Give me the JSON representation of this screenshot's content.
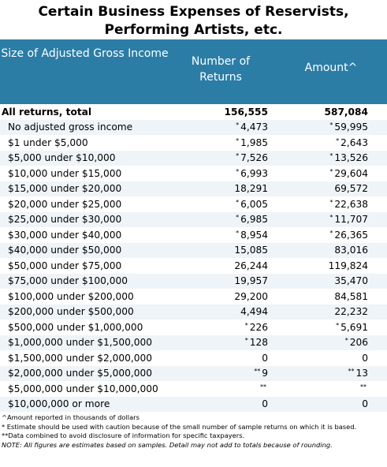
{
  "title": "Certain Business Expenses of Reservists, Performing Artists, etc.",
  "headers": {
    "col1": "Size of Adjusted Gross Income",
    "col2": "Number of Returns",
    "col3": "Amount^"
  },
  "rows": [
    {
      "label": "All returns, total",
      "returns": "156,555",
      "amount": "587,084"
    },
    {
      "label": "No adjusted gross income",
      "returns": "4,473",
      "returns_mark": "*",
      "amount": "59,995",
      "amount_mark": "*"
    },
    {
      "label": "$1 under $5,000",
      "returns": "1,985",
      "returns_mark": "*",
      "amount": "2,643",
      "amount_mark": "*"
    },
    {
      "label": "$5,000 under $10,000",
      "returns": "7,526",
      "returns_mark": "*",
      "amount": "13,526",
      "amount_mark": "*"
    },
    {
      "label": "$10,000 under $15,000",
      "returns": "6,993",
      "returns_mark": "*",
      "amount": "29,604",
      "amount_mark": "*"
    },
    {
      "label": "$15,000 under $20,000",
      "returns": "18,291",
      "amount": "69,572"
    },
    {
      "label": "$20,000 under $25,000",
      "returns": "6,005",
      "returns_mark": "*",
      "amount": "22,638",
      "amount_mark": "*"
    },
    {
      "label": "$25,000 under $30,000",
      "returns": "6,985",
      "returns_mark": "*",
      "amount": "11,707",
      "amount_mark": "*"
    },
    {
      "label": "$30,000 under $40,000",
      "returns": "8,954",
      "returns_mark": "*",
      "amount": "26,365",
      "amount_mark": "*"
    },
    {
      "label": "$40,000 under $50,000",
      "returns": "15,085",
      "amount": "83,016"
    },
    {
      "label": "$50,000 under $75,000",
      "returns": "26,244",
      "amount": "119,824"
    },
    {
      "label": "$75,000 under $100,000",
      "returns": "19,957",
      "amount": "35,470"
    },
    {
      "label": "$100,000 under $200,000",
      "returns": "29,200",
      "amount": "84,581"
    },
    {
      "label": "$200,000 under $500,000",
      "returns": "4,494",
      "amount": "22,232"
    },
    {
      "label": "$500,000 under $1,000,000",
      "returns": "226",
      "returns_mark": "*",
      "amount": "5,691",
      "amount_mark": "*"
    },
    {
      "label": "$1,000,000 under $1,500,000",
      "returns": "128",
      "returns_mark": "*",
      "amount": "206",
      "amount_mark": "*"
    },
    {
      "label": "$1,500,000 under $2,000,000",
      "returns": "0",
      "amount": "0"
    },
    {
      "label": "$2,000,000 under $5,000,000",
      "returns": "9",
      "returns_mark": "**",
      "amount": "13",
      "amount_mark": "**"
    },
    {
      "label": "$5,000,000 under $10,000,000",
      "returns": "",
      "returns_mark": "**",
      "amount": "",
      "amount_mark": "**"
    },
    {
      "label": "$10,000,000 or more",
      "returns": "0",
      "amount": "0"
    }
  ],
  "notes": [
    "^Amount reported in thousands of dollars",
    "* Estimate should be used with caution because of the small number of sample returns on which it is based.",
    "**Data combined to avoid disclosure of information for specific taxpayers.",
    "NOTE: All figures are estimates based on samples. Detail may not add to totals because of rounding."
  ],
  "colors": {
    "header_bg": "#2b7da6",
    "header_text": "#ffffff",
    "row_shade": "#eef4f8"
  }
}
